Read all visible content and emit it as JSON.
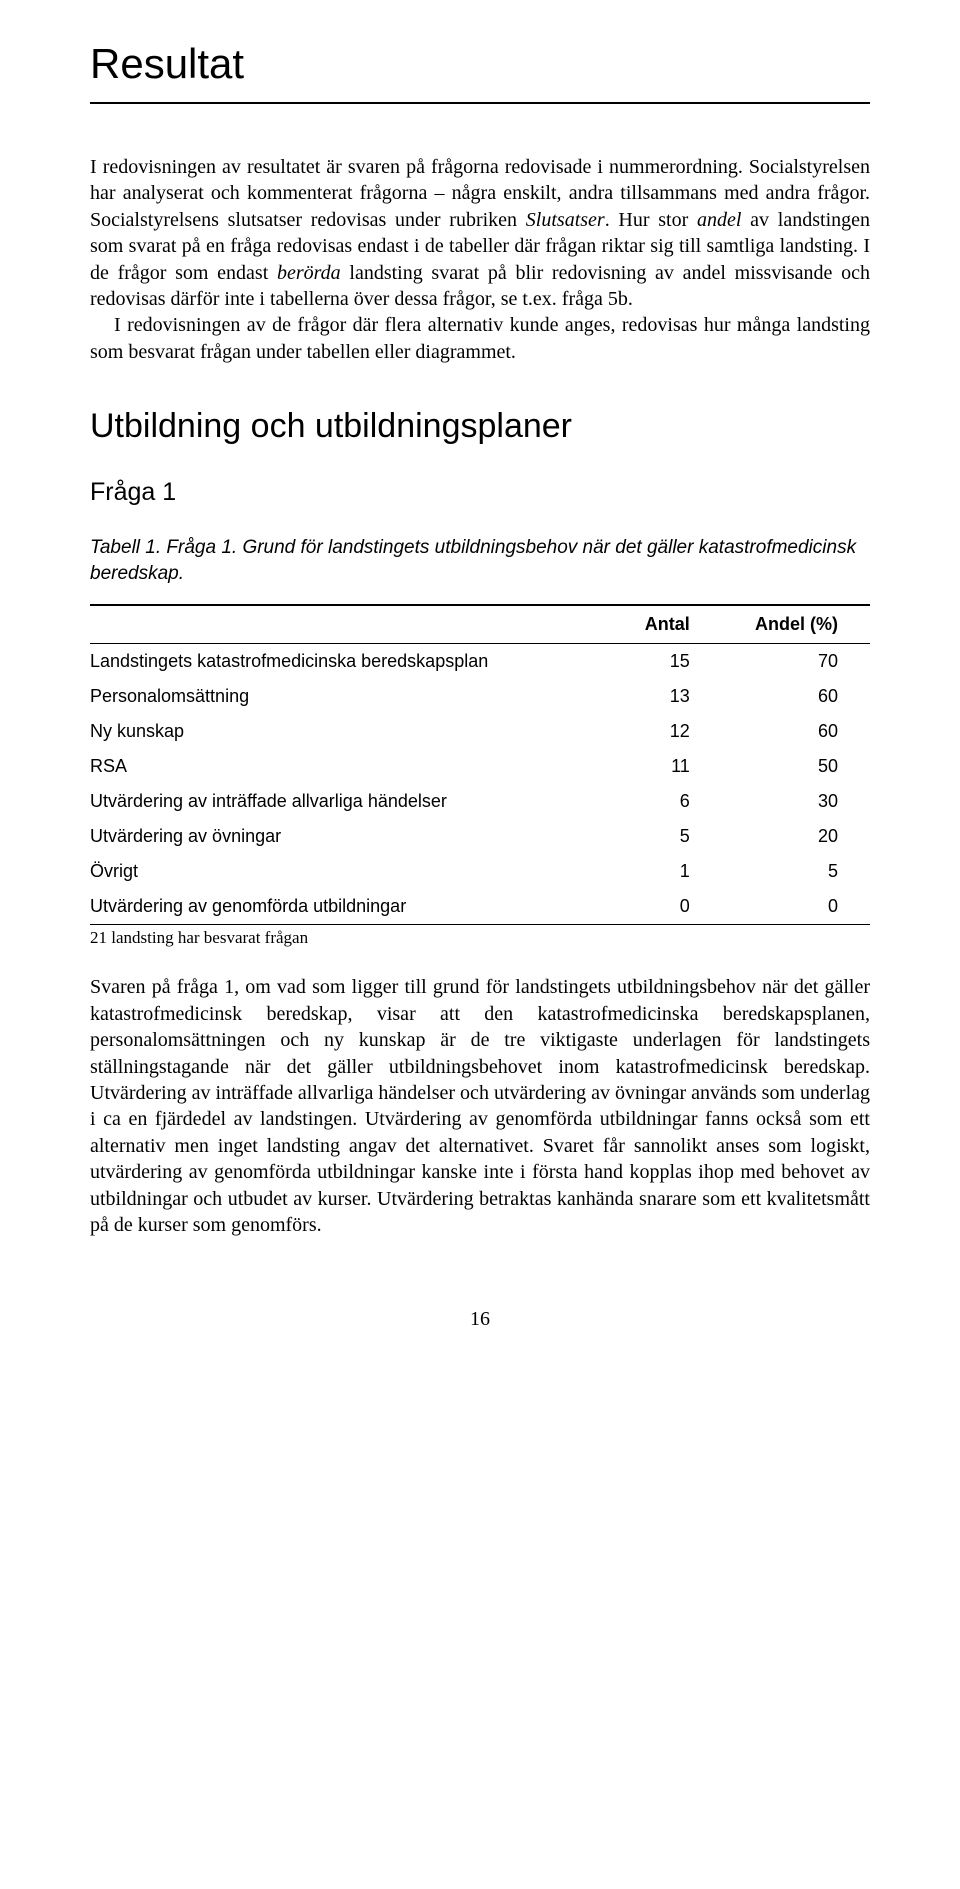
{
  "title": "Resultat",
  "para1_pre": "I redovisningen av resultatet är svaren på frågorna redovisade i nummerordning. Socialstyrelsen har analyserat och kommenterat frågorna – några enskilt, andra tillsammans med andra frågor. Socialstyrelsens slutsatser redovisas under rubriken ",
  "para1_italic1": "Slutsatser",
  "para1_mid1": ". Hur stor ",
  "para1_italic2": "andel",
  "para1_mid2": " av landstingen som svarat på en fråga redovisas endast i de tabeller där frågan riktar sig till samtliga landsting. I de frågor som endast ",
  "para1_italic3": "berörda",
  "para1_post": " landsting svarat på blir redovisning av andel missvisande och redovisas därför inte i tabellerna över dessa frågor, se t.ex. fråga 5b.",
  "para2": "I redovisningen av de frågor där flera alternativ kunde anges, redovisas hur många landsting som besvarat frågan under tabellen eller diagrammet.",
  "section_h2": "Utbildning och utbildningsplaner",
  "section_h3": "Fråga 1",
  "table_caption": "Tabell 1. Fråga 1. Grund för landstingets utbildningsbehov när det gäller katastrofmedicinsk beredskap.",
  "table": {
    "col1_header": "",
    "col2_header": "Antal",
    "col3_header": "Andel (%)",
    "rows": [
      {
        "label": "Landstingets katastrofmedicinska beredskapsplan",
        "antal": "15",
        "andel": "70"
      },
      {
        "label": "Personalomsättning",
        "antal": "13",
        "andel": "60"
      },
      {
        "label": "Ny kunskap",
        "antal": "12",
        "andel": "60"
      },
      {
        "label": "RSA",
        "antal": "11",
        "andel": "50"
      },
      {
        "label": "Utvärdering av inträffade allvarliga händelser",
        "antal": "6",
        "andel": "30"
      },
      {
        "label": "Utvärdering av övningar",
        "antal": "5",
        "andel": "20"
      },
      {
        "label": "Övrigt",
        "antal": "1",
        "andel": "5"
      },
      {
        "label": "Utvärdering av genomförda utbildningar",
        "antal": "0",
        "andel": "0"
      }
    ]
  },
  "table_footnote": "21 landsting har besvarat frågan",
  "para3": "Svaren på fråga 1, om vad som ligger till grund för landstingets utbildningsbehov när det gäller katastrofmedicinsk beredskap, visar att den katastrofmedicinska beredskapsplanen, personalomsättningen och ny kunskap är de tre viktigaste underlagen för landstingets ställningstagande när det gäller utbildningsbehovet inom katastrofmedicinsk beredskap. Utvärdering av inträffade allvarliga händelser och utvärdering av övningar används som underlag i ca en fjärdedel av landstingen. Utvärdering av genomförda utbildningar fanns också som ett alternativ men inget landsting angav det alternativet. Svaret får sannolikt anses som logiskt, utvärdering av genomförda utbildningar kanske inte i första hand kopplas ihop med behovet av utbildningar och utbudet av kurser. Utvärdering betraktas kanhända snarare som ett kvalitetsmått på de kurser som genomförs.",
  "page_number": "16"
}
